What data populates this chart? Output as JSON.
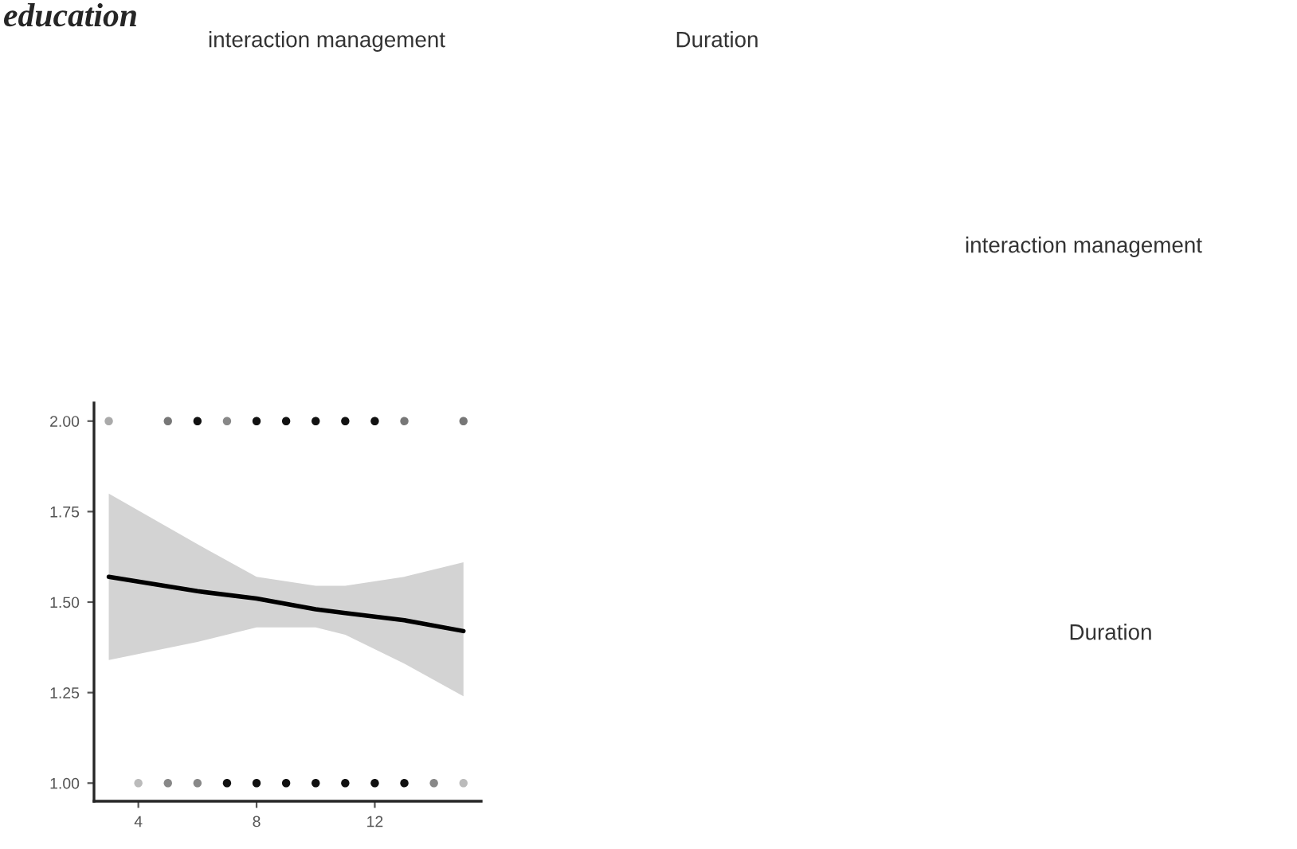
{
  "chart_data": {
    "type": "scatter",
    "title": "education",
    "annotations": [
      "interaction management",
      "Duration",
      "interaction management",
      "Duration"
    ],
    "series": [
      {
        "marker": "circle",
        "x": [
          3,
          5,
          6,
          7,
          8,
          9,
          10,
          11,
          12,
          13,
          15,
          4,
          5,
          6,
          7,
          8,
          9,
          10,
          11,
          12,
          13,
          14,
          15
        ],
        "values": [
          2,
          2,
          2,
          2,
          2,
          2,
          2,
          2,
          2,
          2,
          2,
          1,
          1,
          1,
          1,
          1,
          1,
          1,
          1,
          1,
          1,
          1,
          1
        ],
        "colors": [
          "#aaaaaa",
          "#777777",
          "#111111",
          "#888888",
          "#111111",
          "#111111",
          "#111111",
          "#111111",
          "#111111",
          "#777777",
          "#777777",
          "#bbbbbb",
          "#888888",
          "#888888",
          "#111111",
          "#111111",
          "#111111",
          "#111111",
          "#111111",
          "#111111",
          "#111111",
          "#888888",
          "#bbbbbb"
        ]
      },
      {
        "type": "line",
        "color": "#000000",
        "x": [
          3,
          6,
          8,
          10,
          11,
          13,
          15
        ],
        "values": [
          1.57,
          1.53,
          1.51,
          1.48,
          1.47,
          1.45,
          1.42
        ],
        "lower": [
          1.34,
          1.39,
          1.43,
          1.43,
          1.41,
          1.33,
          1.24
        ],
        "upper": [
          1.8,
          1.66,
          1.57,
          1.545,
          1.545,
          1.57,
          1.61
        ]
      }
    ],
    "xlim": [
      2.5,
      15.6
    ],
    "ylim": [
      0.95,
      2.05
    ],
    "xticks": [
      4,
      8,
      12
    ],
    "yticks": [
      {
        "value": 1,
        "label": "1.00"
      },
      {
        "value": 1.25,
        "label": "1.25"
      },
      {
        "value": 1.5,
        "label": "1.50"
      },
      {
        "value": 1.75,
        "label": "1.75"
      },
      {
        "value": 2,
        "label": "2.00"
      }
    ],
    "grid": false
  }
}
